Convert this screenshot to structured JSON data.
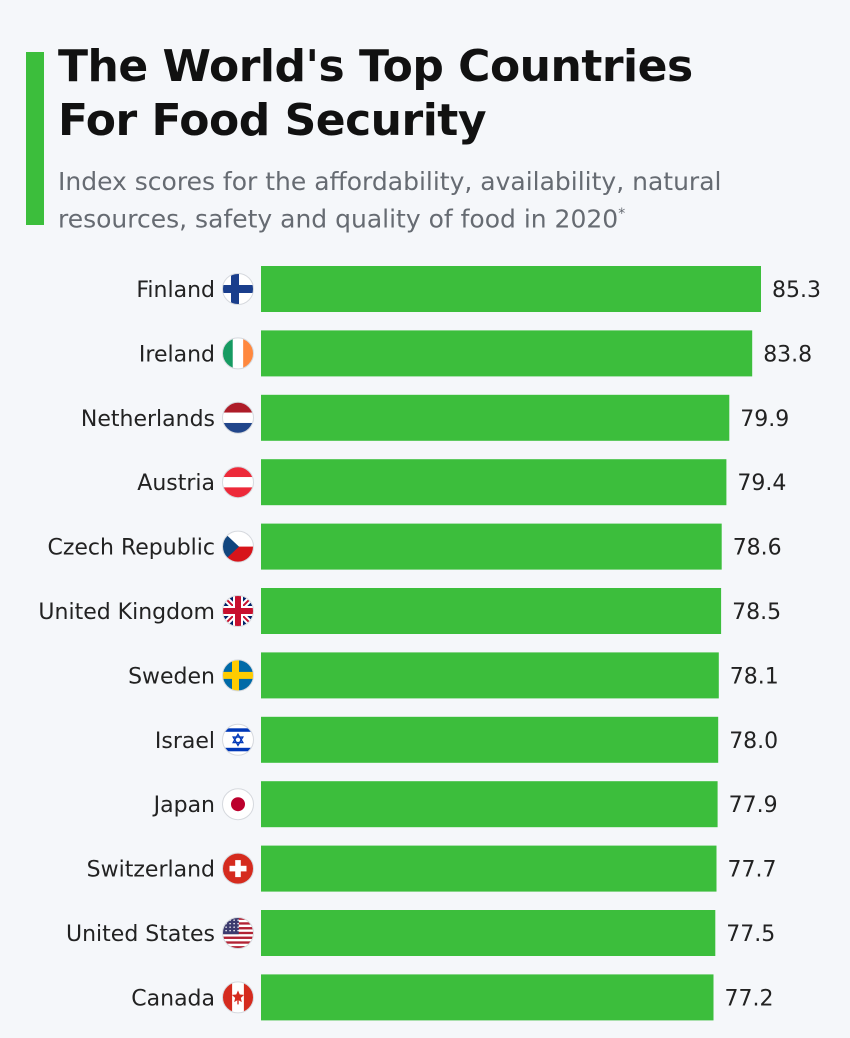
{
  "header": {
    "title_line1": "The World's Top Countries",
    "title_line2": "For Food Security",
    "subtitle_line1": "Index scores for the affordability, availability, natural",
    "subtitle_line2": "resources, safety and quality of food in 2020",
    "subtitle_mark": "*"
  },
  "colors": {
    "accent": "#3cbe3c",
    "bar": "#3cbe3c",
    "background": "#f5f7fa"
  },
  "chart_data": {
    "type": "bar",
    "orientation": "horizontal",
    "title": "The World's Top Countries For Food Security",
    "subtitle": "Index scores for the affordability, availability, natural resources, safety and quality of food in 2020*",
    "categories": [
      "Finland",
      "Ireland",
      "Netherlands",
      "Austria",
      "Czech Republic",
      "United Kingdom",
      "Sweden",
      "Israel",
      "Japan",
      "Switzerland",
      "United States",
      "Canada"
    ],
    "values": [
      85.3,
      83.8,
      79.9,
      79.4,
      78.6,
      78.5,
      78.1,
      78.0,
      77.9,
      77.7,
      77.5,
      77.2
    ],
    "value_labels": [
      "85.3",
      "83.8",
      "79.9",
      "79.4",
      "78.6",
      "78.5",
      "78.1",
      "78.0",
      "77.9",
      "77.7",
      "77.5",
      "77.2"
    ],
    "flags": [
      "finland-flag-icon",
      "ireland-flag-icon",
      "netherlands-flag-icon",
      "austria-flag-icon",
      "czech-republic-flag-icon",
      "united-kingdom-flag-icon",
      "sweden-flag-icon",
      "israel-flag-icon",
      "japan-flag-icon",
      "switzerland-flag-icon",
      "united-states-flag-icon",
      "canada-flag-icon"
    ],
    "xlim": [
      0,
      85.3
    ],
    "xlabel": "",
    "ylabel": "",
    "grid": false,
    "legend": "none"
  }
}
